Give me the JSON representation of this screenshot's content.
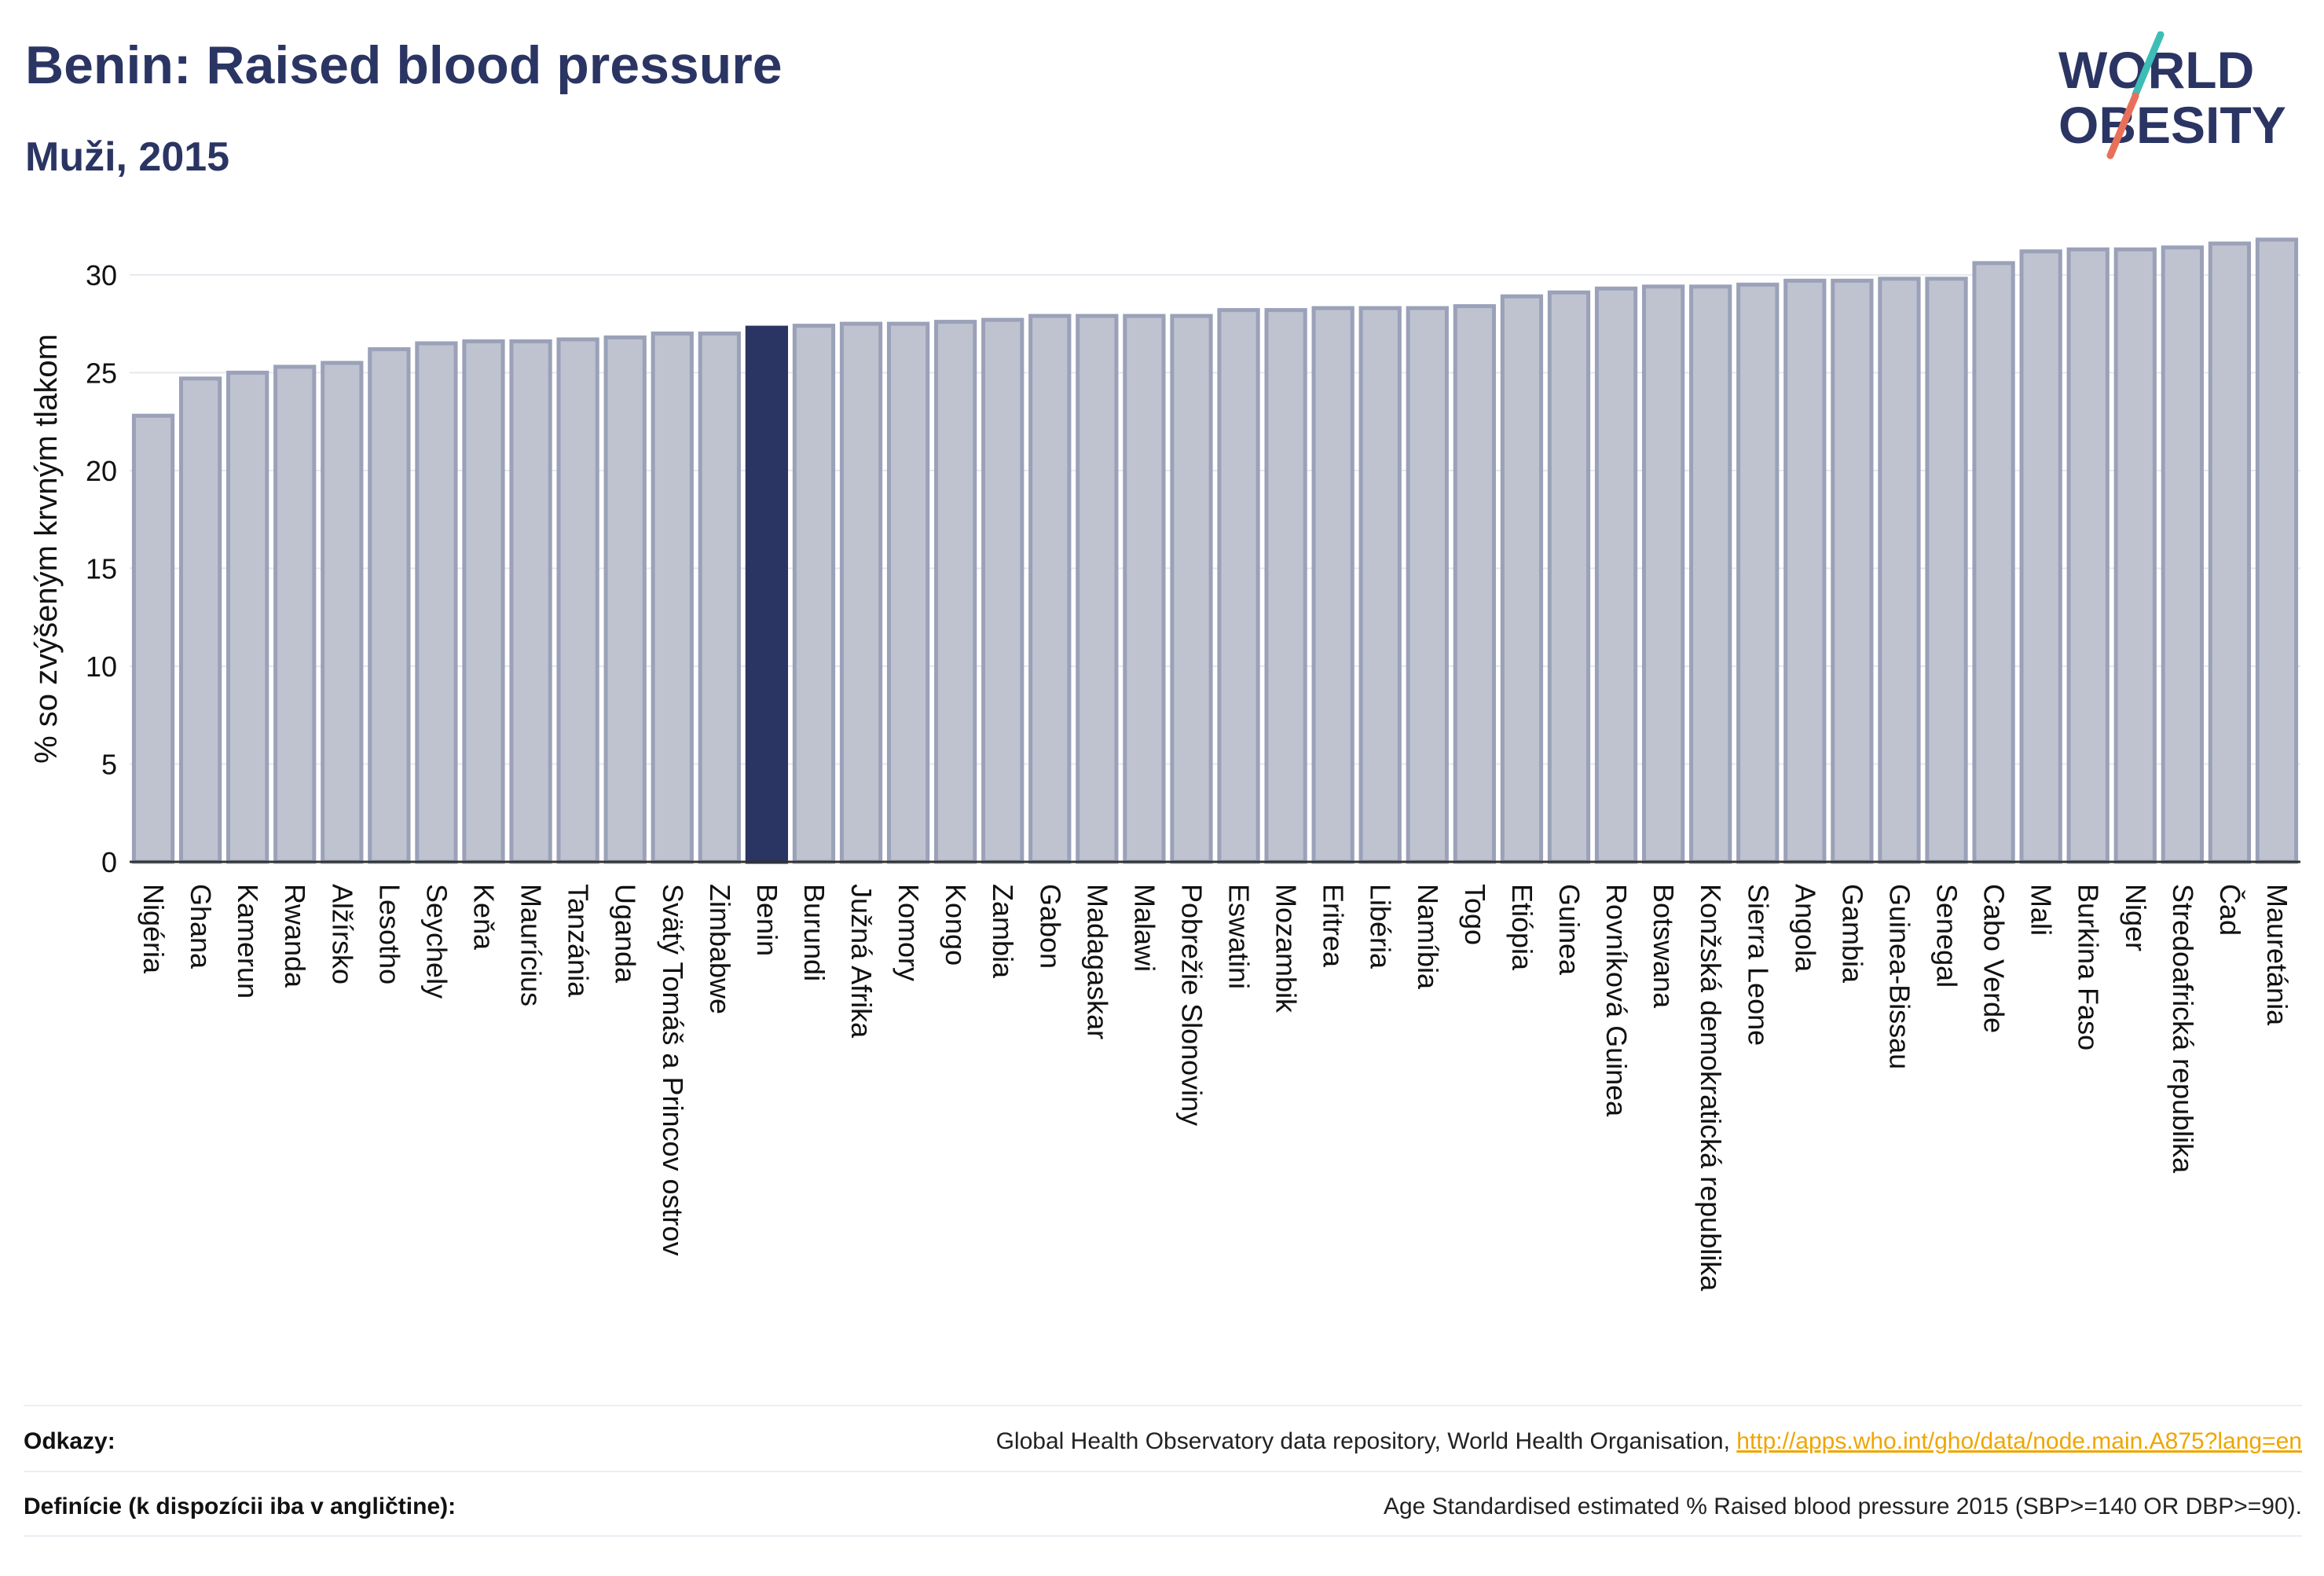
{
  "title": "Benin: Raised blood pressure",
  "subtitle": "Muži, 2015",
  "logo": {
    "line1": "WORLD",
    "line2": "OBESITY"
  },
  "chart_data": {
    "type": "bar",
    "ylabel": "% so zvýšeným krvným tlakom",
    "ylim": [
      0,
      32
    ],
    "yticks": [
      0,
      5,
      10,
      15,
      20,
      25,
      30
    ],
    "grid": true,
    "highlight": "Benin",
    "colors": {
      "bar": "#bfc3d0",
      "bar_edge": "#9aa1b8",
      "highlight": "#2b3563",
      "grid": "#e6e8ef"
    },
    "categories": [
      "Nigéria",
      "Ghana",
      "Kamerun",
      "Rwanda",
      "Alžírsko",
      "Lesotho",
      "Seychely",
      "Keňa",
      "Maurícius",
      "Tanzánia",
      "Uganda",
      "Svätý Tomáš a Princov ostrov",
      "Zimbabwe",
      "Benin",
      "Burundi",
      "Južná Afrika",
      "Komory",
      "Kongo",
      "Zambia",
      "Gabon",
      "Madagaskar",
      "Malawi",
      "Pobrežie Slonoviny",
      "Eswatini",
      "Mozambik",
      "Eritrea",
      "Libéria",
      "Namíbia",
      "Togo",
      "Etiópia",
      "Guinea",
      "Rovníková Guinea",
      "Botswana",
      "Konžská demokratická republika",
      "Sierra Leone",
      "Angola",
      "Gambia",
      "Guinea-Bissau",
      "Senegal",
      "Cabo Verde",
      "Mali",
      "Burkina Faso",
      "Niger",
      "Stredoafrická republika",
      "Čad",
      "Mauretánia"
    ],
    "values": [
      22.8,
      24.7,
      25.0,
      25.3,
      25.5,
      26.2,
      26.5,
      26.6,
      26.6,
      26.7,
      26.8,
      27.0,
      27.0,
      27.3,
      27.4,
      27.5,
      27.5,
      27.6,
      27.7,
      27.9,
      27.9,
      27.9,
      27.9,
      28.2,
      28.2,
      28.3,
      28.3,
      28.3,
      28.4,
      28.9,
      29.1,
      29.3,
      29.4,
      29.4,
      29.5,
      29.7,
      29.7,
      29.8,
      29.8,
      30.6,
      31.2,
      31.3,
      31.3,
      31.4,
      31.6,
      31.8
    ]
  },
  "footer": {
    "refs_label": "Odkazy:",
    "refs_text": "Global Health Observatory data repository, World Health Organisation, ",
    "refs_link": "http://apps.who.int/gho/data/node.main.A875?lang=en",
    "def_label": "Definície (k dispozícii iba v angličtine):",
    "def_text": "Age Standardised estimated % Raised blood pressure 2015 (SBP>=140 OR DBP>=90)."
  }
}
